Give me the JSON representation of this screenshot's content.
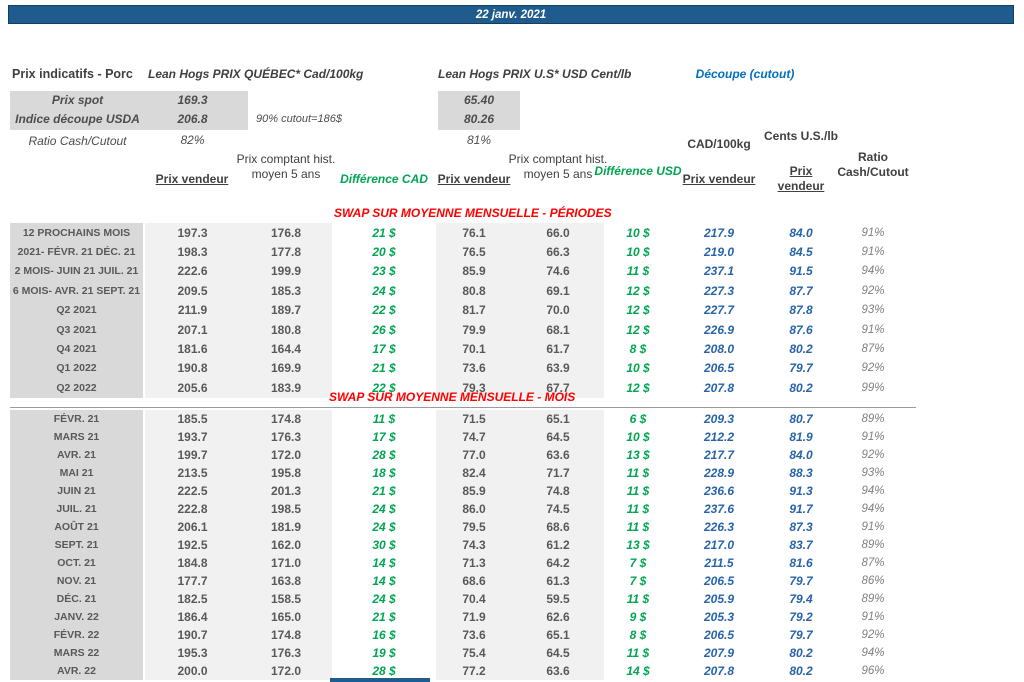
{
  "meta": {
    "date": "22 janv. 2021"
  },
  "colors": {
    "bar_blue": "#1F5B8C",
    "cutout_title_blue": "#0070C0",
    "cutout_value_blue": "#2763A8",
    "difference_green": "#00A651",
    "section_red": "#FF0000",
    "label_gray_bg": "#D9D9D9",
    "data_gray_bg": "#F1F1F1"
  },
  "header": {
    "product_label": "Prix indicatifs - Porc",
    "quebec_title": "Lean Hogs PRIX QUÉBEC* Cad/100kg",
    "us_title": "Lean Hogs PRIX U.S* USD Cent/lb",
    "cutout_title": "Découpe (cutout)",
    "spot_label": "Prix spot",
    "spot_cad": "169.3",
    "spot_usd": "65.40",
    "indice_label": "Indice découpe USDA",
    "indice_cad": "206.8",
    "indice_usd": "80.26",
    "indice_note": "90% cutout=186$",
    "ratio_label": "Ratio Cash/Cutout",
    "ratio_cad": "82%",
    "ratio_usd": "81%"
  },
  "columns": {
    "prix_vendeur_cad": "Prix vendeur",
    "prix_comptant_cad": "Prix comptant hist. moyen 5 ans",
    "difference_cad": "Différence CAD",
    "prix_vendeur_us": "Prix vendeur",
    "prix_comptant_us": "Prix comptant hist. moyen 5 ans",
    "difference_usd": "Différence USD",
    "cad_100kg": "CAD/100kg",
    "cents_us_lb": "Cents U.S./lb",
    "prix_vendeur_cutout_cad": "Prix vendeur",
    "prix_vendeur_cutout_cents": "Prix vendeur",
    "ratio_cash_cutout": "Ratio Cash/Cutout"
  },
  "sections": [
    {
      "title": "SWAP SUR MOYENNE MENSUELLE - PÉRIODES",
      "rows": [
        [
          "12 PROCHAINS MOIS",
          "197.3",
          "176.8",
          "21 $",
          "76.1",
          "66.0",
          "10 $",
          "217.9",
          "84.0",
          "91%"
        ],
        [
          "2021- FÉVR. 21 DÉC. 21",
          "198.3",
          "177.8",
          "20 $",
          "76.5",
          "66.3",
          "10 $",
          "219.0",
          "84.5",
          "91%"
        ],
        [
          "2 MOIS- JUIN 21 JUIL. 21",
          "222.6",
          "199.9",
          "23 $",
          "85.9",
          "74.6",
          "11 $",
          "237.1",
          "91.5",
          "94%"
        ],
        [
          "6 MOIS- AVR. 21 SEPT. 21",
          "209.5",
          "185.3",
          "24 $",
          "80.8",
          "69.1",
          "12 $",
          "227.3",
          "87.7",
          "92%"
        ],
        [
          "Q2 2021",
          "211.9",
          "189.7",
          "22 $",
          "81.7",
          "70.0",
          "12 $",
          "227.7",
          "87.8",
          "93%"
        ],
        [
          "Q3 2021",
          "207.1",
          "180.8",
          "26 $",
          "79.9",
          "68.1",
          "12 $",
          "226.9",
          "87.6",
          "91%"
        ],
        [
          "Q4 2021",
          "181.6",
          "164.4",
          "17 $",
          "70.1",
          "61.7",
          "8 $",
          "208.0",
          "80.2",
          "87%"
        ],
        [
          "Q1 2022",
          "190.8",
          "169.9",
          "21 $",
          "73.6",
          "63.9",
          "10 $",
          "206.5",
          "79.7",
          "92%"
        ],
        [
          "Q2 2022",
          "205.6",
          "183.9",
          "22 $",
          "79.3",
          "67.7",
          "12 $",
          "207.8",
          "80.2",
          "99%"
        ]
      ]
    },
    {
      "title": "SWAP SUR MOYENNE MENSUELLE - MOIS",
      "rows": [
        [
          "FÉVR. 21",
          "185.5",
          "174.8",
          "11 $",
          "71.5",
          "65.1",
          "6 $",
          "209.3",
          "80.7",
          "89%"
        ],
        [
          "MARS 21",
          "193.7",
          "176.3",
          "17 $",
          "74.7",
          "64.5",
          "10 $",
          "212.2",
          "81.9",
          "91%"
        ],
        [
          "AVR. 21",
          "199.7",
          "172.0",
          "28 $",
          "77.0",
          "63.6",
          "13 $",
          "217.7",
          "84.0",
          "92%"
        ],
        [
          "MAI 21",
          "213.5",
          "195.8",
          "18 $",
          "82.4",
          "71.7",
          "11 $",
          "228.9",
          "88.3",
          "93%"
        ],
        [
          "JUIN 21",
          "222.5",
          "201.3",
          "21 $",
          "85.9",
          "74.8",
          "11 $",
          "236.6",
          "91.3",
          "94%"
        ],
        [
          "JUIL. 21",
          "222.8",
          "198.5",
          "24 $",
          "86.0",
          "74.5",
          "11 $",
          "237.6",
          "91.7",
          "94%"
        ],
        [
          "AOÛT 21",
          "206.1",
          "181.9",
          "24 $",
          "79.5",
          "68.6",
          "11 $",
          "226.3",
          "87.3",
          "91%"
        ],
        [
          "SEPT. 21",
          "192.5",
          "162.0",
          "30 $",
          "74.3",
          "61.2",
          "13 $",
          "217.0",
          "83.7",
          "89%"
        ],
        [
          "OCT. 21",
          "184.8",
          "171.0",
          "14 $",
          "71.3",
          "64.2",
          "7 $",
          "211.5",
          "81.6",
          "87%"
        ],
        [
          "NOV. 21",
          "177.7",
          "163.8",
          "14 $",
          "68.6",
          "61.3",
          "7 $",
          "206.5",
          "79.7",
          "86%"
        ],
        [
          "DÉC. 21",
          "182.5",
          "158.5",
          "24 $",
          "70.4",
          "59.5",
          "11 $",
          "205.9",
          "79.4",
          "89%"
        ],
        [
          "JANV. 22",
          "186.4",
          "165.0",
          "21 $",
          "71.9",
          "62.6",
          "9 $",
          "205.3",
          "79.2",
          "91%"
        ],
        [
          "FÉVR. 22",
          "190.7",
          "174.8",
          "16 $",
          "73.6",
          "65.1",
          "8 $",
          "206.5",
          "79.7",
          "92%"
        ],
        [
          "MARS 22",
          "195.3",
          "176.3",
          "19 $",
          "75.4",
          "64.5",
          "11 $",
          "207.9",
          "80.2",
          "94%"
        ],
        [
          "AVR. 22",
          "200.0",
          "172.0",
          "28 $",
          "77.2",
          "63.6",
          "14 $",
          "207.8",
          "80.2",
          "96%"
        ]
      ]
    }
  ]
}
